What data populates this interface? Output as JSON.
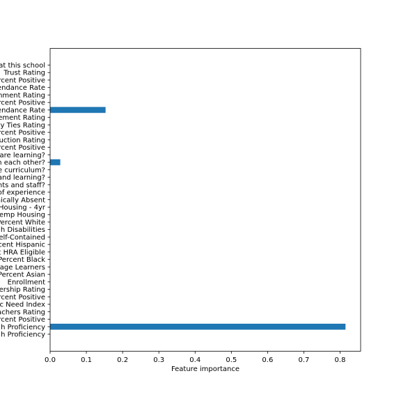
{
  "chart_data": {
    "type": "bar",
    "orientation": "horizontal",
    "xlabel": "Feature importance",
    "ylabel": "",
    "title": "",
    "xlim": [
      0,
      0.85
    ],
    "xticks": [
      0.0,
      0.1,
      0.2,
      0.3,
      0.4,
      0.5,
      0.6,
      0.7,
      0.8
    ],
    "xtick_labels": [
      "0.0",
      "0.1",
      "0.2",
      "0.3",
      "0.4",
      "0.5",
      "0.6",
      "0.7",
      "0.8"
    ],
    "bar_color": "#1f77b4",
    "grid": false,
    "categories": [
      "h Proficiency",
      "h Proficiency",
      "rcent Positive",
      "achers Rating",
      "c Need Index",
      "rcent Positive",
      "ership Rating",
      "Enrollment",
      "Percent Asian",
      "age Learners",
      "Percent Black",
      "t HRA Eligible",
      "cent Hispanic",
      "elf-Contained",
      "h Disabilities",
      "Percent White",
      "emp Housing",
      "Housing - 4yr",
      "nically Absent",
      "of experience",
      "nts and staff?",
      "and learning?",
      "e curriculum?",
      "h each other?",
      "are learning?",
      "rcent Positive",
      "uction Rating",
      "rcent Positive",
      "y Ties Rating",
      "ement Rating",
      "endance Rate",
      "rcent Positive",
      "nment Rating",
      "endance Rate",
      "rcent Positive",
      "Trust Rating",
      "at this school"
    ],
    "values": [
      0,
      0.815,
      0,
      0,
      0,
      0,
      0,
      0,
      0,
      0,
      0,
      0,
      0,
      0,
      0,
      0,
      0,
      0,
      0,
      0,
      0,
      0,
      0,
      0.028,
      0,
      0,
      0,
      0,
      0,
      0,
      0.153,
      0,
      0,
      0,
      0,
      0,
      0
    ]
  }
}
